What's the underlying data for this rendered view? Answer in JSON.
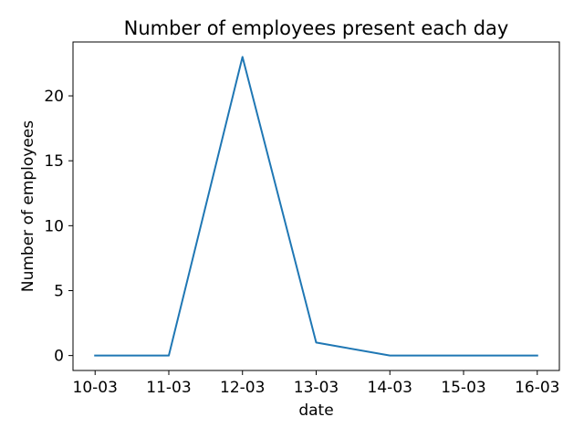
{
  "chart_data": {
    "type": "line",
    "title": "Number of employees present each day",
    "xlabel": "date",
    "ylabel": "Number of employees",
    "categories": [
      "10-03",
      "11-03",
      "12-03",
      "13-03",
      "14-03",
      "15-03",
      "16-03"
    ],
    "series": [
      {
        "values": [
          0,
          0,
          23,
          1,
          0,
          0,
          0
        ],
        "color": "#1f77b4"
      }
    ],
    "yticks": [
      0,
      5,
      10,
      15,
      20
    ],
    "ylim": [
      -1.15,
      24.15
    ],
    "grid": false,
    "legend": "none"
  }
}
